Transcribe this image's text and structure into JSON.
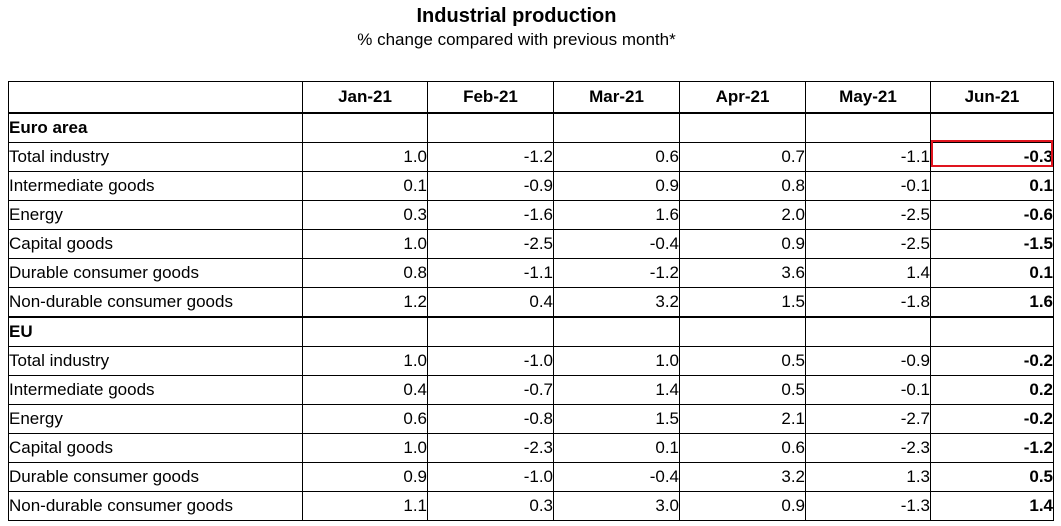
{
  "title": "Industrial production",
  "subtitle": "% change compared with previous month*",
  "highlight_color": "#e0141e",
  "chart_data": {
    "type": "table",
    "title": "Industrial production",
    "subtitle": "% change compared with previous month*",
    "columns": [
      "Jan-21",
      "Feb-21",
      "Mar-21",
      "Apr-21",
      "May-21",
      "Jun-21"
    ],
    "highlighted_cell": {
      "group": "Euro area",
      "row": "Total industry",
      "column": "Jun-21"
    },
    "groups": [
      {
        "name": "Euro area",
        "rows": [
          {
            "label": "Total industry",
            "level": 1,
            "values": [
              "1.0",
              "-1.2",
              "0.6",
              "0.7",
              "-1.1",
              "-0.3"
            ]
          },
          {
            "label": "Intermediate goods",
            "level": 2,
            "values": [
              "0.1",
              "-0.9",
              "0.9",
              "0.8",
              "-0.1",
              "0.1"
            ]
          },
          {
            "label": "Energy",
            "level": 2,
            "values": [
              "0.3",
              "-1.6",
              "1.6",
              "2.0",
              "-2.5",
              "-0.6"
            ]
          },
          {
            "label": "Capital goods",
            "level": 2,
            "values": [
              "1.0",
              "-2.5",
              "-0.4",
              "0.9",
              "-2.5",
              "-1.5"
            ]
          },
          {
            "label": "Durable consumer goods",
            "level": 2,
            "values": [
              "0.8",
              "-1.1",
              "-1.2",
              "3.6",
              "1.4",
              "0.1"
            ]
          },
          {
            "label": "Non-durable consumer goods",
            "level": 2,
            "values": [
              "1.2",
              "0.4",
              "3.2",
              "1.5",
              "-1.8",
              "1.6"
            ]
          }
        ]
      },
      {
        "name": "EU",
        "rows": [
          {
            "label": "Total industry",
            "level": 1,
            "values": [
              "1.0",
              "-1.0",
              "1.0",
              "0.5",
              "-0.9",
              "-0.2"
            ]
          },
          {
            "label": "Intermediate goods",
            "level": 2,
            "values": [
              "0.4",
              "-0.7",
              "1.4",
              "0.5",
              "-0.1",
              "0.2"
            ]
          },
          {
            "label": "Energy",
            "level": 2,
            "values": [
              "0.6",
              "-0.8",
              "1.5",
              "2.1",
              "-2.7",
              "-0.2"
            ]
          },
          {
            "label": "Capital goods",
            "level": 2,
            "values": [
              "1.0",
              "-2.3",
              "0.1",
              "0.6",
              "-2.3",
              "-1.2"
            ]
          },
          {
            "label": "Durable consumer goods",
            "level": 2,
            "values": [
              "0.9",
              "-1.0",
              "-0.4",
              "3.2",
              "1.3",
              "0.5"
            ]
          },
          {
            "label": "Non-durable consumer goods",
            "level": 2,
            "values": [
              "1.1",
              "0.3",
              "3.0",
              "0.9",
              "-1.3",
              "1.4"
            ]
          }
        ]
      }
    ]
  }
}
